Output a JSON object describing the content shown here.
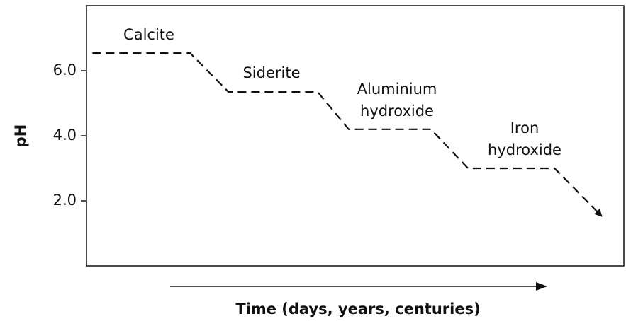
{
  "chart_data": {
    "type": "line",
    "x_label": "Time (days, years, centuries)",
    "y_label": "pH",
    "xlim": [
      0,
      100
    ],
    "ylim": [
      0,
      8
    ],
    "yticks": [
      {
        "value": 2,
        "label": "2.0"
      },
      {
        "value": 4,
        "label": "4.0"
      },
      {
        "value": 6,
        "label": "6.0"
      }
    ],
    "series": [
      {
        "color": "#111111",
        "dashed": true,
        "arrow_end": true,
        "x": [
          1.1,
          19.3,
          26.4,
          43.0,
          48.8,
          64.1,
          71.0,
          87.1,
          95.8
        ],
        "values": [
          6.54,
          6.54,
          5.35,
          5.35,
          4.2,
          4.2,
          3.0,
          3.0,
          1.54
        ]
      }
    ],
    "annotations": [
      {
        "lines": [
          "Calcite"
        ]
      },
      {
        "lines": [
          "Siderite"
        ]
      },
      {
        "lines": [
          "Aluminium",
          "hydroxide"
        ]
      },
      {
        "lines": [
          "Iron",
          "hydroxide"
        ]
      }
    ]
  }
}
